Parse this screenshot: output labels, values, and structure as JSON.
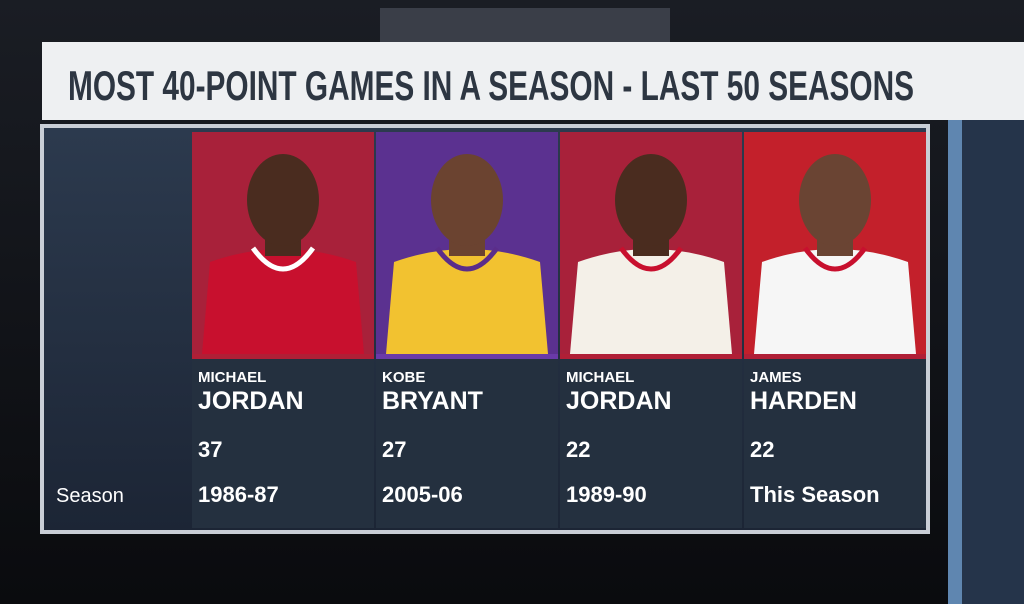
{
  "header": {
    "title": "MOST 40-POINT GAMES IN A SEASON - LAST 50 SEASONS"
  },
  "table": {
    "row_label": "Season",
    "players": [
      {
        "first": "MICHAEL",
        "last": "JORDAN",
        "games": 37,
        "season": "1986-87"
      },
      {
        "first": "KOBE",
        "last": "BRYANT",
        "games": 27,
        "season": "2005-06"
      },
      {
        "first": "MICHAEL",
        "last": "JORDAN",
        "games": 22,
        "season": "1989-90"
      },
      {
        "first": "JAMES",
        "last": "HARDEN",
        "games": 22,
        "season": "This Season"
      }
    ]
  }
}
